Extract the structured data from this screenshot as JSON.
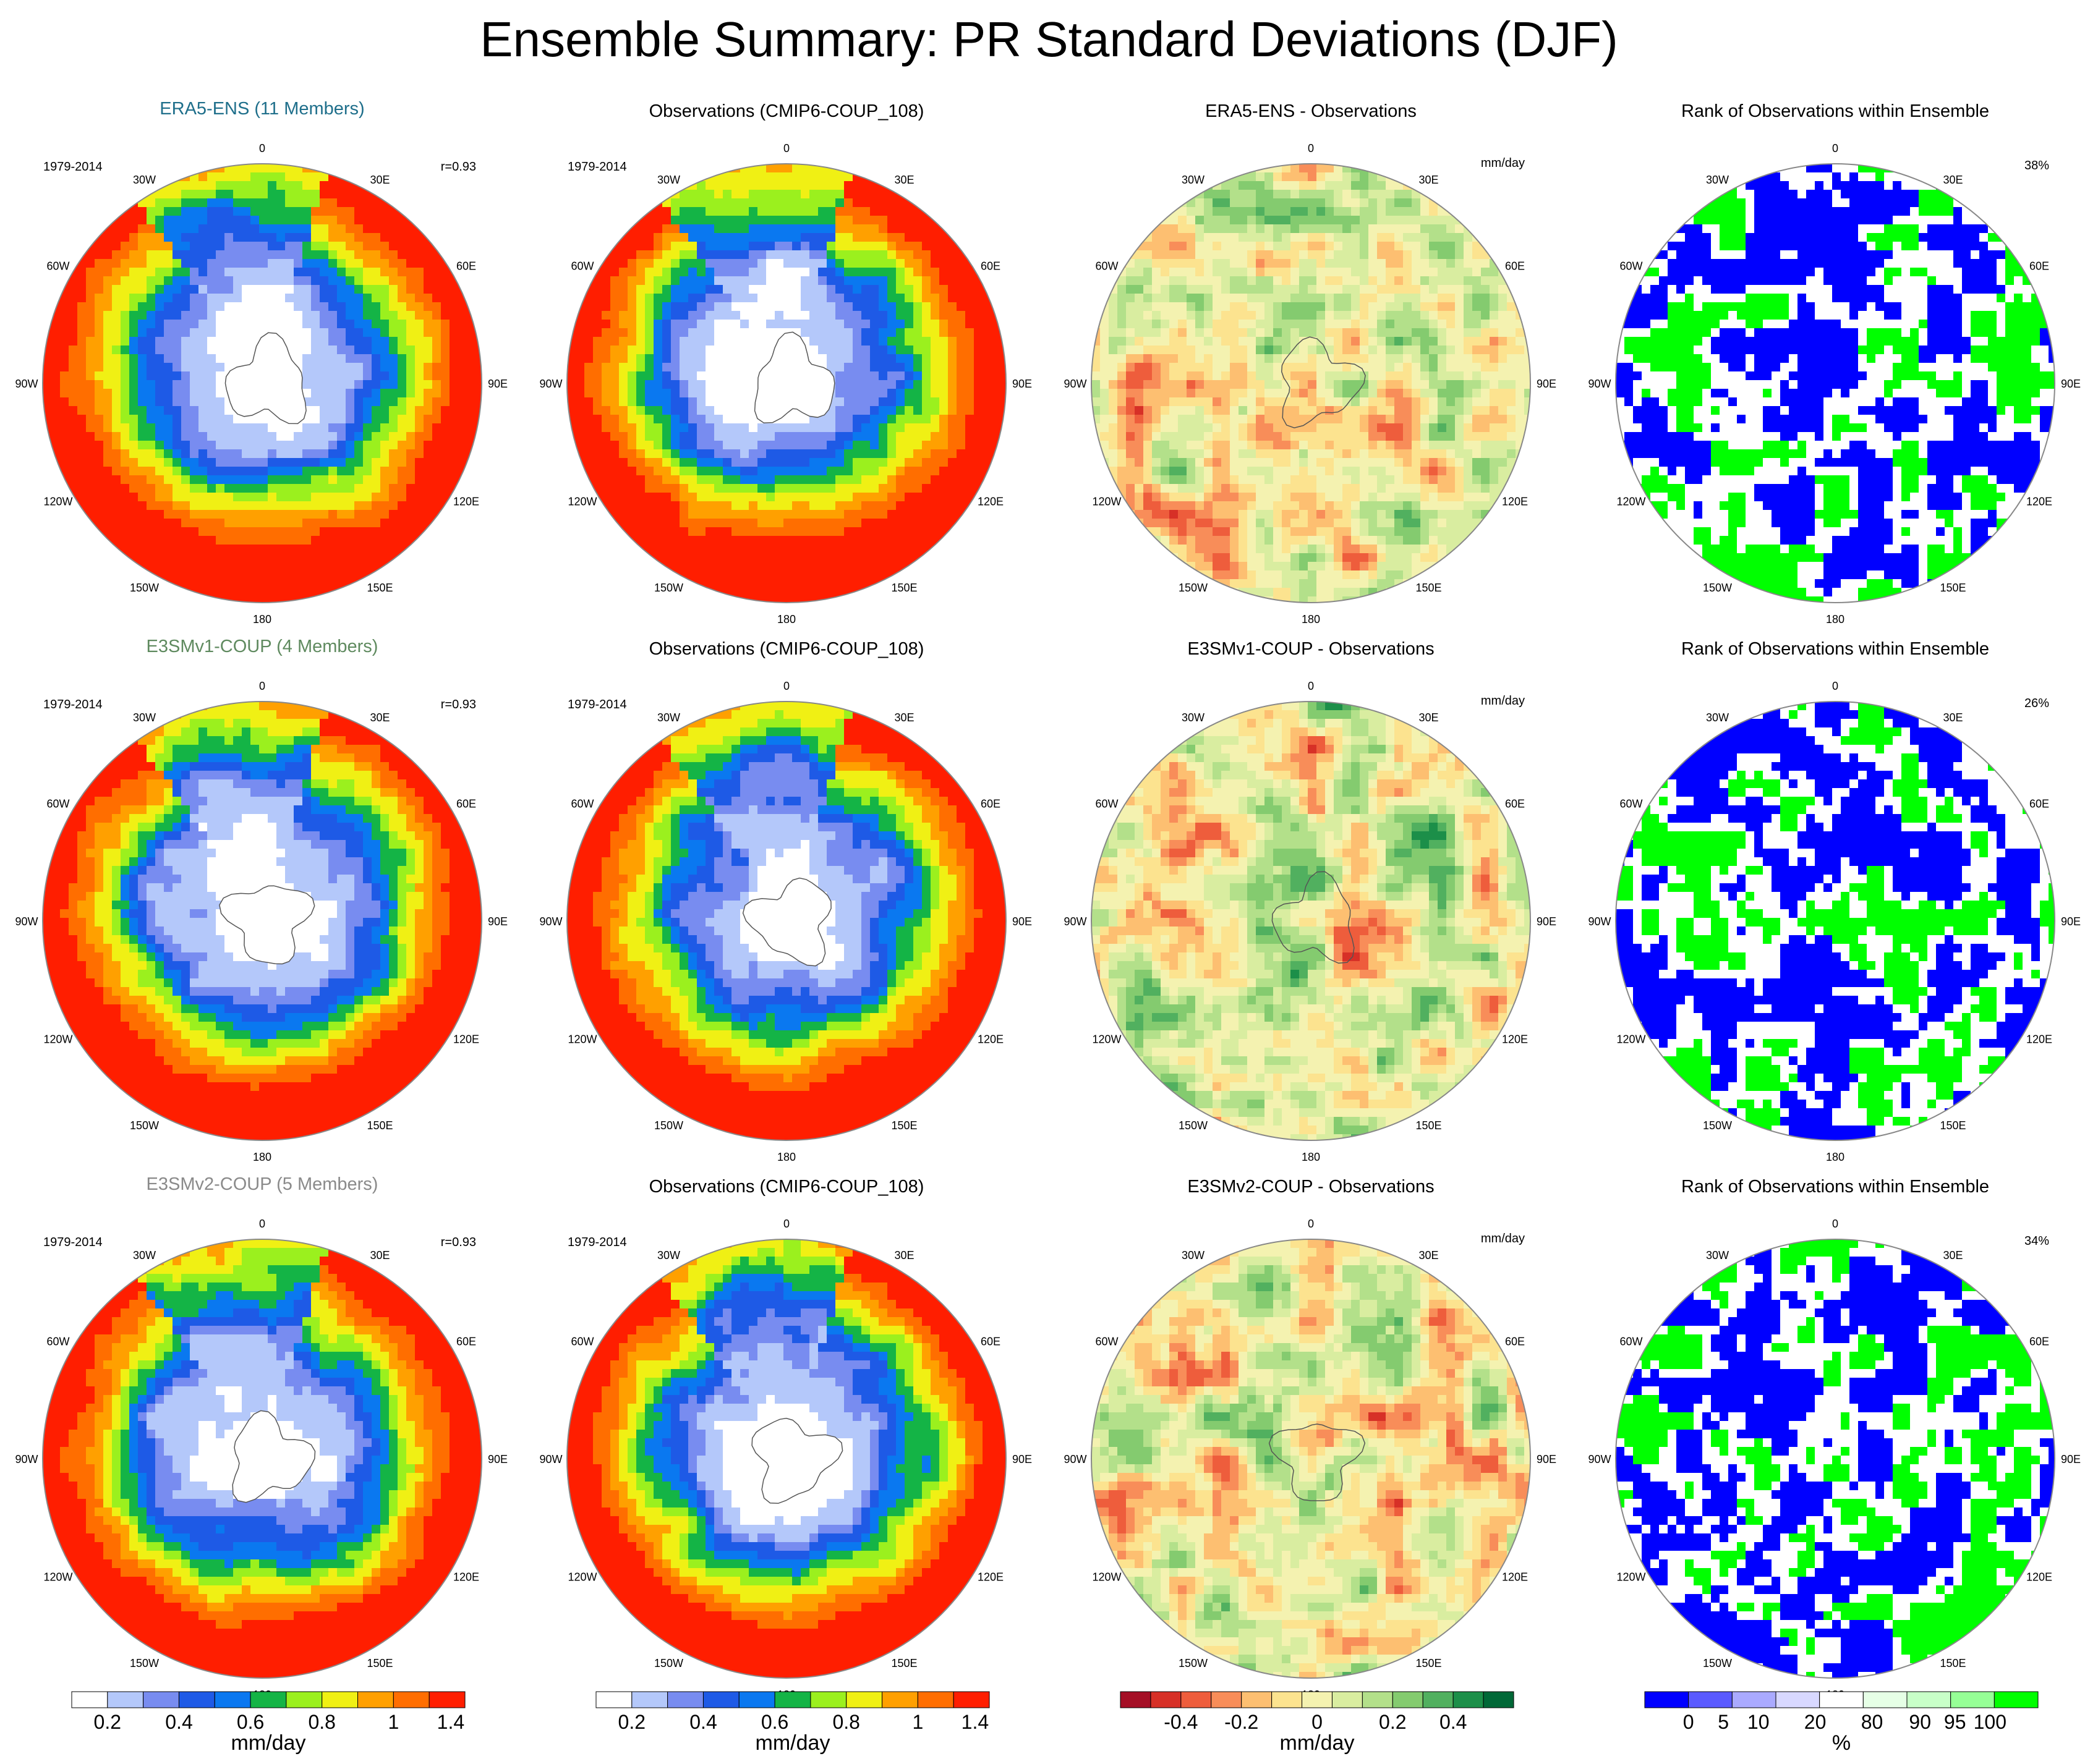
{
  "title": "Ensemble Summary: PR Standard Deviations (DJF)",
  "colors": {
    "sd_levels": [
      "#ffffff",
      "#b4c8fa",
      "#788cf0",
      "#1e5ae6",
      "#0a78f0",
      "#14b446",
      "#9bf01e",
      "#f0f014",
      "#ffa000",
      "#ff6e00",
      "#ff1e00"
    ],
    "diff_levels": [
      "#a50f26",
      "#d73027",
      "#ee5d3c",
      "#f88d59",
      "#fdbf71",
      "#fce38f",
      "#f4f2b0",
      "#d9eda0",
      "#b3e08a",
      "#84cb6f",
      "#51b05f",
      "#1c8f49",
      "#006837"
    ],
    "rank_levels": [
      "#0000ff",
      "#5a5aff",
      "#aaaaff",
      "#d8d8ff",
      "#ffffff",
      "#e6ffe6",
      "#c8ffc8",
      "#96ff96",
      "#00ff00"
    ]
  },
  "map_labels": {
    "lon": [
      "0",
      "30E",
      "60E",
      "90E",
      "120E",
      "150E",
      "180",
      "150W",
      "120W",
      "90W",
      "60W",
      "30W"
    ],
    "period": "1979-2014",
    "units": "mm/day"
  },
  "rows": [
    {
      "model_title": "ERA5-ENS (11 Members)",
      "model_title_color": "#1f6f8b",
      "corr": "r=0.93",
      "obs_title": "Observations (CMIP6-COUP_108)",
      "diff_title": "ERA5-ENS - Observations",
      "rank_title": "Rank of Observations within Ensemble",
      "rank_pct": "38%"
    },
    {
      "model_title": "E3SMv1-COUP (4 Members)",
      "model_title_color": "#5f8a5f",
      "corr": "r=0.93",
      "obs_title": "Observations (CMIP6-COUP_108)",
      "diff_title": "E3SMv1-COUP - Observations",
      "rank_title": "Rank of Observations within Ensemble",
      "rank_pct": "26%"
    },
    {
      "model_title": "E3SMv2-COUP (5 Members)",
      "model_title_color": "#8a8a8a",
      "corr": "r=0.93",
      "obs_title": "Observations (CMIP6-COUP_108)",
      "diff_title": "E3SMv2-COUP - Observations",
      "rank_title": "Rank of Observations within Ensemble",
      "rank_pct": "34%"
    }
  ],
  "colorbars": [
    {
      "ticks": [
        "0.2",
        "0.4",
        "0.6",
        "0.8",
        "1",
        "1.4"
      ],
      "label": "mm/day"
    },
    {
      "ticks": [
        "0.2",
        "0.4",
        "0.6",
        "0.8",
        "1",
        "1.4"
      ],
      "label": "mm/day"
    },
    {
      "ticks": [
        "-0.4",
        "-0.2",
        "0",
        "0.2",
        "0.4"
      ],
      "label": "mm/day"
    },
    {
      "ticks": [
        "0",
        "5",
        "10",
        "20",
        "80",
        "90",
        "95",
        "100"
      ],
      "label": "%"
    }
  ],
  "chart_data": {
    "type": "heatmap",
    "title": "Ensemble Summary: PR Standard Deviations (DJF)",
    "projection": "south polar stereographic",
    "panels_per_row": [
      "model standard deviation",
      "observed standard deviation",
      "model minus observations",
      "rank of observations within ensemble"
    ],
    "sd_contour_levels": [
      0.1,
      0.2,
      0.3,
      0.4,
      0.5,
      0.6,
      0.7,
      0.8,
      0.9,
      1.0,
      1.2,
      1.4
    ],
    "diff_contour_levels": [
      -0.5,
      -0.4,
      -0.3,
      -0.2,
      -0.1,
      -0.05,
      0,
      0.05,
      0.1,
      0.2,
      0.3,
      0.4,
      0.5
    ],
    "rank_levels": [
      0,
      5,
      10,
      20,
      80,
      90,
      95,
      100
    ],
    "correlations": [
      0.93,
      0.93,
      0.93
    ],
    "rank_percentages": [
      38,
      26,
      34
    ]
  }
}
